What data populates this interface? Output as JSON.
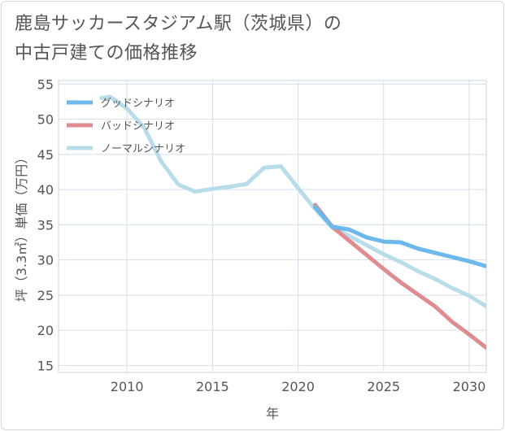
{
  "title_line1": "鹿島サッカースタジアム駅（茨城県）の",
  "title_line2": "中古戸建ての価格推移",
  "chart_data": {
    "type": "line",
    "title": "鹿島サッカースタジアム駅（茨城県）の中古戸建ての価格推移",
    "xlabel": "年",
    "ylabel": "坪（3.3㎡）単価（万円）",
    "xlim": [
      2006,
      2031
    ],
    "ylim": [
      14,
      55.5
    ],
    "xticks": [
      2010,
      2015,
      2020,
      2025,
      2030
    ],
    "yticks": [
      15,
      20,
      25,
      30,
      35,
      40,
      45,
      50,
      55
    ],
    "grid": true,
    "legend_position": "top-left",
    "series": [
      {
        "name": "グッドシナリオ",
        "color": "#6cb8ec",
        "x": [
          2021,
          2022,
          2023,
          2024,
          2025,
          2026,
          2027,
          2028,
          2029,
          2030,
          2031
        ],
        "values": [
          37.5,
          34.7,
          34.3,
          33.2,
          32.6,
          32.5,
          31.6,
          31.0,
          30.4,
          29.8,
          29.1
        ]
      },
      {
        "name": "バッドシナリオ",
        "color": "#e08b8f",
        "x": [
          2021,
          2022,
          2023,
          2024,
          2025,
          2026,
          2027,
          2028,
          2029,
          2030,
          2031
        ],
        "values": [
          37.8,
          34.7,
          32.7,
          30.7,
          28.7,
          26.8,
          25.1,
          23.4,
          21.2,
          19.4,
          17.5
        ]
      },
      {
        "name": "ノーマルシナリオ",
        "color": "#b9dcea",
        "x": [
          2008.5,
          2009,
          2010,
          2011,
          2012,
          2013,
          2014,
          2015,
          2016,
          2017,
          2018,
          2019,
          2020,
          2021,
          2022,
          2023,
          2024,
          2025,
          2026,
          2027,
          2028,
          2029,
          2030,
          2031
        ],
        "values": [
          53.0,
          53.2,
          51.5,
          48.8,
          44.0,
          40.7,
          39.7,
          40.1,
          40.4,
          40.8,
          43.1,
          43.3,
          40.2,
          37.2,
          34.6,
          33.4,
          32.1,
          30.8,
          29.7,
          28.4,
          27.3,
          26.0,
          24.9,
          23.4
        ]
      }
    ]
  }
}
